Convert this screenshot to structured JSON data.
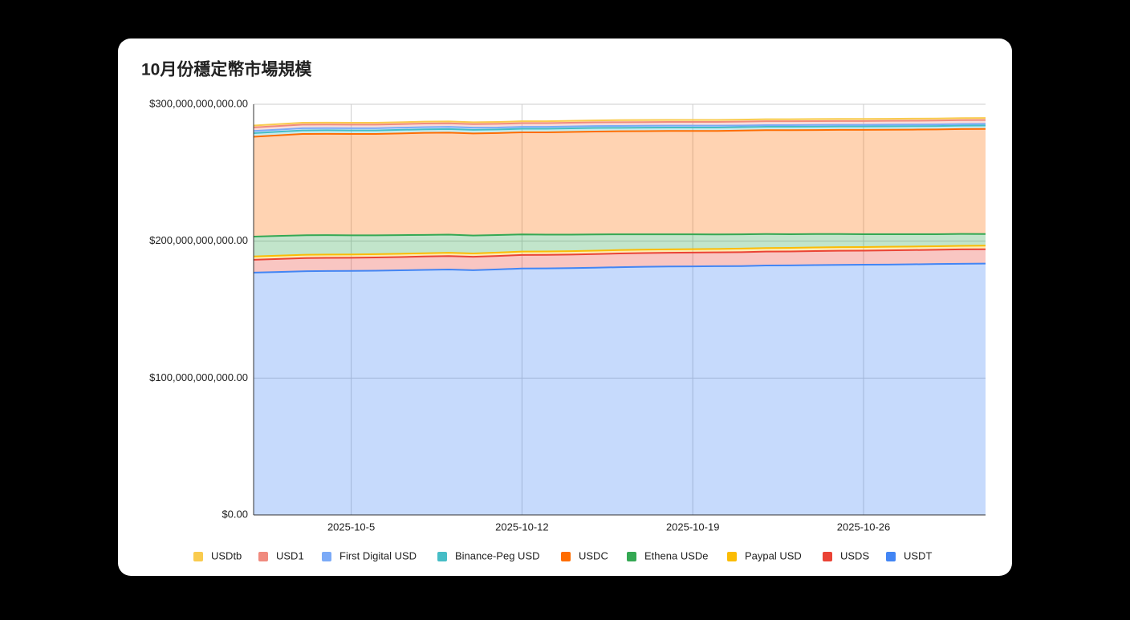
{
  "chart_data": {
    "type": "stacked-area",
    "title": "10月份穩定幣市場規模",
    "categories": [
      null,
      null,
      null,
      null,
      "2025-10-5",
      null,
      null,
      null,
      null,
      null,
      null,
      "2025-10-12",
      null,
      null,
      null,
      null,
      null,
      null,
      "2025-10-19",
      null,
      null,
      null,
      null,
      null,
      null,
      "2025-10-26",
      null,
      null,
      null,
      null,
      null
    ],
    "ylim": [
      0,
      300000000000.0
    ],
    "yticks": [
      {
        "value": 0,
        "label": "$0.00"
      },
      {
        "value": 100000000000.0,
        "label": "$100,000,000,000.00"
      },
      {
        "value": 200000000000.0,
        "label": "$200,000,000,000.00"
      },
      {
        "value": 300000000000.0,
        "label": "$300,000,000,000.00"
      }
    ],
    "grid": true,
    "legend": "bottom",
    "series": [
      {
        "name": "USDtb",
        "color": "#f9cb4e",
        "values": [
          1400000000.0,
          1400000000.0,
          1400000000.0,
          1400000000.0,
          1400000000.0,
          1400000000.0,
          1400000000.0,
          1400000000.0,
          1400000000.0,
          1400000000.0,
          1400000000.0,
          1400000000.0,
          1400000000.0,
          1400000000.0,
          1400000000.0,
          1500000000.0,
          1500000000.0,
          1500000000.0,
          1500000000.0,
          1500000000.0,
          1500000000.0,
          1500000000.0,
          1500000000.0,
          1500000000.0,
          1500000000.0,
          1500000000.0,
          1500000000.0,
          1500000000.0,
          1500000000.0,
          1500000000.0,
          1500000000.0
        ]
      },
      {
        "name": "USD1",
        "color": "#f08a7e",
        "values": [
          2600000000.0,
          2600000000.0,
          2600000000.0,
          2600000000.0,
          2600000000.0,
          2600000000.0,
          2600000000.0,
          2600000000.0,
          2600000000.0,
          2600000000.0,
          2700000000.0,
          2700000000.0,
          2700000000.0,
          2700000000.0,
          2700000000.0,
          2700000000.0,
          2700000000.0,
          2700000000.0,
          2700000000.0,
          2700000000.0,
          2800000000.0,
          2800000000.0,
          2800000000.0,
          2800000000.0,
          2800000000.0,
          2800000000.0,
          2800000000.0,
          2800000000.0,
          2800000000.0,
          2800000000.0,
          2800000000.0
        ]
      },
      {
        "name": "First Digital USD",
        "color": "#7baaf7",
        "values": [
          1600000000.0,
          1600000000.0,
          1600000000.0,
          1600000000.0,
          1600000000.0,
          1600000000.0,
          1600000000.0,
          1600000000.0,
          1600000000.0,
          1600000000.0,
          1400000000.0,
          1400000000.0,
          1400000000.0,
          1400000000.0,
          1400000000.0,
          1400000000.0,
          1400000000.0,
          1400000000.0,
          1400000000.0,
          1400000000.0,
          1200000000.0,
          1200000000.0,
          1200000000.0,
          1200000000.0,
          1200000000.0,
          1200000000.0,
          1200000000.0,
          1200000000.0,
          1200000000.0,
          1200000000.0,
          1200000000.0
        ]
      },
      {
        "name": "Binance-Peg USD",
        "color": "#46bdc6",
        "values": [
          2600000000.0,
          2600000000.0,
          2600000000.0,
          2600000000.0,
          2600000000.0,
          2600000000.0,
          2600000000.0,
          2600000000.0,
          2600000000.0,
          2600000000.0,
          2600000000.0,
          2600000000.0,
          2600000000.0,
          2600000000.0,
          2600000000.0,
          2500000000.0,
          2500000000.0,
          2500000000.0,
          2500000000.0,
          2500000000.0,
          2500000000.0,
          2500000000.0,
          2500000000.0,
          2500000000.0,
          2500000000.0,
          2500000000.0,
          2500000000.0,
          2500000000.0,
          2500000000.0,
          2500000000.0,
          2500000000.0
        ]
      },
      {
        "name": "USDC",
        "color": "#ff6d01",
        "values": [
          73000000000.0,
          73500000000.0,
          74000000000.0,
          74000000000.0,
          74000000000.0,
          74000000000.0,
          74300000000.0,
          74500000000.0,
          74500000000.0,
          74600000000.0,
          74500000000.0,
          74600000000.0,
          74700000000.0,
          75000000000.0,
          75200000000.0,
          75300000000.0,
          75400000000.0,
          75500000000.0,
          75500000000.0,
          75600000000.0,
          75800000000.0,
          75900000000.0,
          76000000000.0,
          76000000000.0,
          76100000000.0,
          76200000000.0,
          76300000000.0,
          76400000000.0,
          76500000000.0,
          76600000000.0,
          76800000000.0
        ]
      },
      {
        "name": "Ethena USDe",
        "color": "#34a853",
        "values": [
          14500000000.0,
          14400000000.0,
          14300000000.0,
          14200000000.0,
          14000000000.0,
          13800000000.0,
          13600000000.0,
          13400000000.0,
          13300000000.0,
          13100000000.0,
          12800000000.0,
          12500000000.0,
          12300000000.0,
          12100000000.0,
          11800000000.0,
          11500000000.0,
          11200000000.0,
          11000000000.0,
          10800000000.0,
          10600000000.0,
          10400000000.0,
          10200000000.0,
          10000000000.0,
          9800000000.0,
          9600000000.0,
          9400000000.0,
          9200000000.0,
          9000000000.0,
          8800000000.0,
          8700000000.0,
          8500000000.0
        ]
      },
      {
        "name": "Paypal USD",
        "color": "#fbbc04",
        "values": [
          2400000000.0,
          2400000000.0,
          2400000000.0,
          2400000000.0,
          2400000000.0,
          2400000000.0,
          2400000000.0,
          2400000000.0,
          2400000000.0,
          2400000000.0,
          2500000000.0,
          2500000000.0,
          2500000000.0,
          2500000000.0,
          2500000000.0,
          2500000000.0,
          2500000000.0,
          2500000000.0,
          2500000000.0,
          2500000000.0,
          2600000000.0,
          2600000000.0,
          2600000000.0,
          2600000000.0,
          2600000000.0,
          2600000000.0,
          2600000000.0,
          2600000000.0,
          2600000000.0,
          2600000000.0,
          2600000000.0
        ]
      },
      {
        "name": "USDS",
        "color": "#ea4335",
        "values": [
          9400000000.0,
          9500000000.0,
          9600000000.0,
          9600000000.0,
          9600000000.0,
          9700000000.0,
          9700000000.0,
          9800000000.0,
          9800000000.0,
          9800000000.0,
          9800000000.0,
          9900000000.0,
          9900000000.0,
          9900000000.0,
          10000000000.0,
          10000000000.0,
          10000000000.0,
          10000000000.0,
          10100000000.0,
          10100000000.0,
          10200000000.0,
          10200000000.0,
          10200000000.0,
          10300000000.0,
          10300000000.0,
          10300000000.0,
          10400000000.0,
          10400000000.0,
          10400000000.0,
          10500000000.0,
          10500000000.0
        ]
      },
      {
        "name": "USDT",
        "color": "#4285f4",
        "values": [
          177000000000.0,
          177500000000.0,
          178000000000.0,
          178200000000.0,
          178300000000.0,
          178400000000.0,
          178700000000.0,
          179000000000.0,
          179300000000.0,
          178800000000.0,
          179400000000.0,
          180000000000.0,
          180100000000.0,
          180300000000.0,
          180600000000.0,
          181000000000.0,
          181300000000.0,
          181500000000.0,
          181600000000.0,
          181700000000.0,
          181800000000.0,
          182200000000.0,
          182300000000.0,
          182500000000.0,
          182700000000.0,
          182800000000.0,
          182900000000.0,
          183100000000.0,
          183300000000.0,
          183500000000.0,
          183600000000.0
        ]
      }
    ]
  }
}
